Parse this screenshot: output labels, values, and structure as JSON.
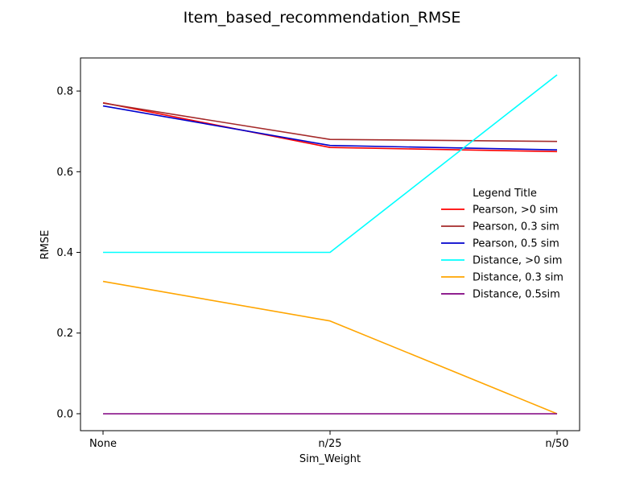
{
  "chart_data": {
    "type": "line",
    "title": "Item_based_recommendation_RMSE",
    "xlabel": "Sim_Weight",
    "ylabel": "RMSE",
    "categories": [
      "None",
      "n/25",
      "n/50"
    ],
    "ylim": [
      -0.042,
      0.882
    ],
    "yticks": [
      0.0,
      0.2,
      0.4,
      0.6,
      0.8
    ],
    "ytick_labels": [
      "0.0",
      "0.2",
      "0.4",
      "0.6",
      "0.8"
    ],
    "grid": false,
    "legend": {
      "title": "Legend Title",
      "position": "center-right"
    },
    "series": [
      {
        "name": "Pearson, >0 sim",
        "color": "#ff0000",
        "values": [
          0.771,
          0.66,
          0.65
        ]
      },
      {
        "name": "Pearson, 0.3 sim",
        "color": "#a52a2a",
        "values": [
          0.77,
          0.68,
          0.675
        ]
      },
      {
        "name": "Pearson, 0.5 sim",
        "color": "#0000cd",
        "values": [
          0.763,
          0.665,
          0.654
        ]
      },
      {
        "name": "Distance, >0 sim",
        "color": "#00ffff",
        "values": [
          0.4,
          0.4,
          0.84
        ]
      },
      {
        "name": "Distance, 0.3 sim",
        "color": "#ffa500",
        "values": [
          0.328,
          0.23,
          0.0
        ]
      },
      {
        "name": "Distance, 0.5sim",
        "color": "#800080",
        "values": [
          0.0,
          0.0,
          0.0
        ]
      }
    ]
  }
}
